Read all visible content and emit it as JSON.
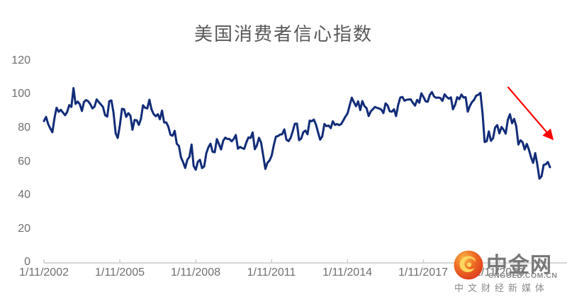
{
  "title": "美国消费者信心指数",
  "watermark": {
    "brand": "中金网",
    "domain": "CNGOLD.COM.CN",
    "tagline": "中文财经新媒体",
    "icon": "flame-ball-icon"
  },
  "colors": {
    "line": "#122C78",
    "arrow": "#FF0000",
    "title_text": "#595959",
    "axis_text": "#6F6F6F",
    "axis_line": "#C9C9C9",
    "logo_red": "#D7331D",
    "logo_orange": "#EF6A23",
    "logo_gold": "#FFD75E",
    "logo_text": "#8A8A8A"
  },
  "chart_data": {
    "type": "line",
    "title": "美国消费者信心指数",
    "xlabel": "",
    "ylabel": "",
    "x_start": "2002-11",
    "x_end": "2022-11",
    "x_frequency": "monthly",
    "x_tick_labels": [
      "1/11/2002",
      "1/11/2005",
      "1/11/2008",
      "1/11/2011",
      "1/11/2014",
      "1/11/2017",
      "1/11/2020"
    ],
    "y_tick_labels": [
      "120",
      "100",
      "80",
      "60",
      "40",
      "20",
      "0"
    ],
    "y_ticks": [
      0,
      20,
      40,
      60,
      80,
      100,
      120
    ],
    "ylim": [
      0,
      120
    ],
    "grid": false,
    "legend_position": "none",
    "series": [
      {
        "name": "美国消费者信心指数",
        "values": [
          84.2,
          86.7,
          82.4,
          79.9,
          77.6,
          86.0,
          92.1,
          89.7,
          90.9,
          89.3,
          87.7,
          89.6,
          93.7,
          92.6,
          103.8,
          94.4,
          95.8,
          94.2,
          90.2,
          95.6,
          96.7,
          95.9,
          94.2,
          91.7,
          92.8,
          97.1,
          95.5,
          94.1,
          92.6,
          87.7,
          86.9,
          96.0,
          96.5,
          89.1,
          76.9,
          74.2,
          81.6,
          91.5,
          91.2,
          86.7,
          88.9,
          87.4,
          79.1,
          84.9,
          84.7,
          82.0,
          85.4,
          93.6,
          92.1,
          91.7,
          96.9,
          91.3,
          88.4,
          87.1,
          88.3,
          85.3,
          90.4,
          83.4,
          83.4,
          80.9,
          76.1,
          75.5,
          78.4,
          70.8,
          69.5,
          62.6,
          59.8,
          56.4,
          61.2,
          63.0,
          70.3,
          57.6,
          55.3,
          60.1,
          61.2,
          56.3,
          57.3,
          65.1,
          68.7,
          70.8,
          66.0,
          65.7,
          73.5,
          70.6,
          67.4,
          72.5,
          74.4,
          73.6,
          73.6,
          72.2,
          73.6,
          76.0,
          67.8,
          68.9,
          68.2,
          67.7,
          71.6,
          74.5,
          74.2,
          77.5,
          67.5,
          69.8,
          74.3,
          71.5,
          63.7,
          55.8,
          59.5,
          60.8,
          63.7,
          69.9,
          75.0,
          75.3,
          76.2,
          76.4,
          79.3,
          73.2,
          72.3,
          74.3,
          78.3,
          82.6,
          82.7,
          72.9,
          73.8,
          77.6,
          78.6,
          76.4,
          84.5,
          84.1,
          85.1,
          82.1,
          77.5,
          73.2,
          75.1,
          82.5,
          81.2,
          81.6,
          80.0,
          84.1,
          81.9,
          82.5,
          81.8,
          82.5,
          84.6,
          86.9,
          88.8,
          93.6,
          98.1,
          95.4,
          93.0,
          95.9,
          90.7,
          96.1,
          93.1,
          91.9,
          87.2,
          90.0,
          91.3,
          92.6,
          92.0,
          91.7,
          91.0,
          89.0,
          94.7,
          93.5,
          90.0,
          89.8,
          91.2,
          87.2,
          93.8,
          98.2,
          98.5,
          96.3,
          96.9,
          97.0,
          97.1,
          95.0,
          93.4,
          96.8,
          95.1,
          100.7,
          98.5,
          95.9,
          95.7,
          99.7,
          101.4,
          98.8,
          98.0,
          98.2,
          97.9,
          96.2,
          100.1,
          98.6,
          97.5,
          98.3,
          91.2,
          93.8,
          98.4,
          97.2,
          100.0,
          98.2,
          98.4,
          89.8,
          93.2,
          95.5,
          96.8,
          99.3,
          99.8,
          101.0,
          89.1,
          71.8,
          72.3,
          78.1,
          72.5,
          74.1,
          80.4,
          81.8,
          76.9,
          80.7,
          79.0,
          76.8,
          84.9,
          88.3,
          82.9,
          85.5,
          81.2,
          70.3,
          72.8,
          71.7,
          67.4,
          70.6,
          67.2,
          62.8,
          59.4,
          65.2,
          58.4,
          50.0,
          51.5,
          58.2,
          58.6,
          59.9,
          56.8
        ]
      }
    ],
    "annotations": [
      {
        "type": "arrow",
        "color": "#FF0000",
        "from": {
          "month_index": 220,
          "value": 104.5
        },
        "to": {
          "month_index": 241,
          "value": 73.9
        },
        "note": "decline-highlight"
      }
    ]
  }
}
